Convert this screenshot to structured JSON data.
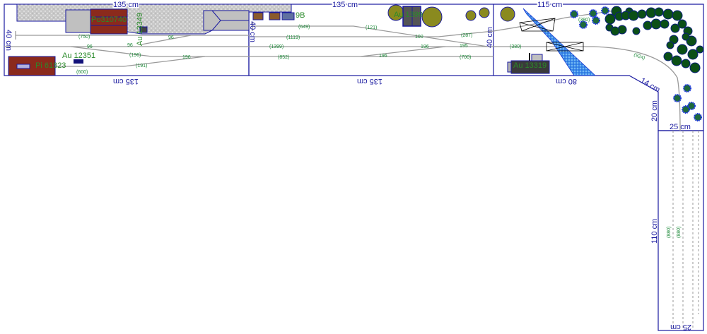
{
  "dimensions": {
    "m1_top": "135 cm",
    "m1_bottom": "135 cm",
    "m1_left": "40 cm",
    "m2_top": "135 cm",
    "m2_bottom": "135 cm",
    "m2_left": "40 cm",
    "m2_right": "40 cm",
    "m3_top": "115 cm",
    "m3_bottom": "80 cm",
    "diag": "14 cm",
    "corner_v": "20 cm",
    "corner_h": "25 cm",
    "m4_side": "110 cm",
    "m4_bottom": "25 cm"
  },
  "buildings": {
    "po": "Po310740",
    "au_vert": "Au 13349",
    "pi": "Pi 61823",
    "au1": "Au 12351",
    "m2_small": "9B",
    "au_m2": "Au 1399",
    "au_m3": "Au 13319"
  },
  "track_labels": [
    "(750)",
    "96",
    "96",
    "96",
    "(196)",
    "196",
    "(191)",
    "(600)",
    "(649)",
    "(121)",
    "(1119)",
    "100",
    "(287)",
    "(1399)",
    "196",
    "195",
    "(852)",
    "196",
    "(700)",
    "(380)",
    "(380)",
    "(924)",
    "(880)",
    "(880)"
  ],
  "colors": {
    "edge": "#1a1aa0",
    "track": "#9a9a9a",
    "building_red": "#8b2a1c",
    "tree": "#0b4f16",
    "water": "#3a8ee8"
  }
}
